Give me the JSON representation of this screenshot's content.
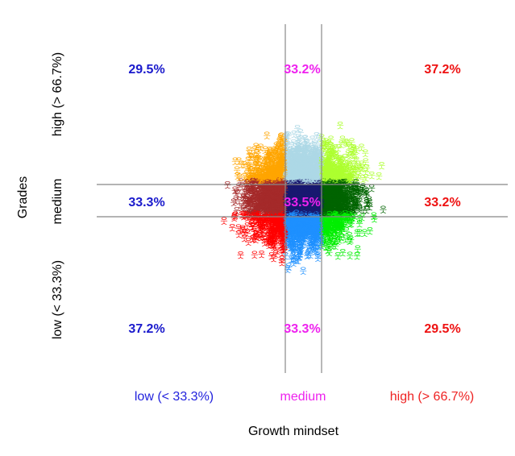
{
  "chart_data": {
    "type": "scatter",
    "title": "",
    "xlabel": "Growth mindset",
    "ylabel": "Grades",
    "x_categories": [
      {
        "label": "low (< 33.3%)",
        "color": "#2222dd"
      },
      {
        "label": "medium",
        "color": "#ee22ee"
      },
      {
        "label": "high (> 66.7%)",
        "color": "#ee2222"
      }
    ],
    "y_categories": [
      {
        "label": "low (< 33.3%)"
      },
      {
        "label": "medium"
      },
      {
        "label": "high (> 66.7%)"
      }
    ],
    "cells": [
      {
        "grades": "high (> 66.7%)",
        "mindset": "low (< 33.3%)",
        "label": "29.5%",
        "label_color": "#1a1acc",
        "point_color": "#ffa500"
      },
      {
        "grades": "high (> 66.7%)",
        "mindset": "medium",
        "label": "33.2%",
        "label_color": "#ee22ee",
        "point_color": "#add8e6"
      },
      {
        "grades": "high (> 66.7%)",
        "mindset": "high (> 66.7%)",
        "label": "37.2%",
        "label_color": "#ee1111",
        "point_color": "#adff2f"
      },
      {
        "grades": "medium",
        "mindset": "low (< 33.3%)",
        "label": "33.3%",
        "label_color": "#1a1acc",
        "point_color": "#a52a2a"
      },
      {
        "grades": "medium",
        "mindset": "medium",
        "label": "33.5%",
        "label_color": "#ee22ee",
        "point_color": "#191970"
      },
      {
        "grades": "medium",
        "mindset": "high (> 66.7%)",
        "label": "33.2%",
        "label_color": "#ee1111",
        "point_color": "#006400"
      },
      {
        "grades": "low (< 33.3%)",
        "mindset": "low (< 33.3%)",
        "label": "37.2%",
        "label_color": "#1a1acc",
        "point_color": "#ff0000"
      },
      {
        "grades": "low (< 33.3%)",
        "mindset": "medium",
        "label": "33.3%",
        "label_color": "#ee22ee",
        "point_color": "#1e90ff"
      },
      {
        "grades": "low (< 33.3%)",
        "mindset": "high (> 66.7%)",
        "label": "29.5%",
        "label_color": "#ee1111",
        "point_color": "#00ee00"
      }
    ],
    "marker_glyph": "웃",
    "reference_line_color": "#888888",
    "grid": false,
    "legend": "none"
  }
}
